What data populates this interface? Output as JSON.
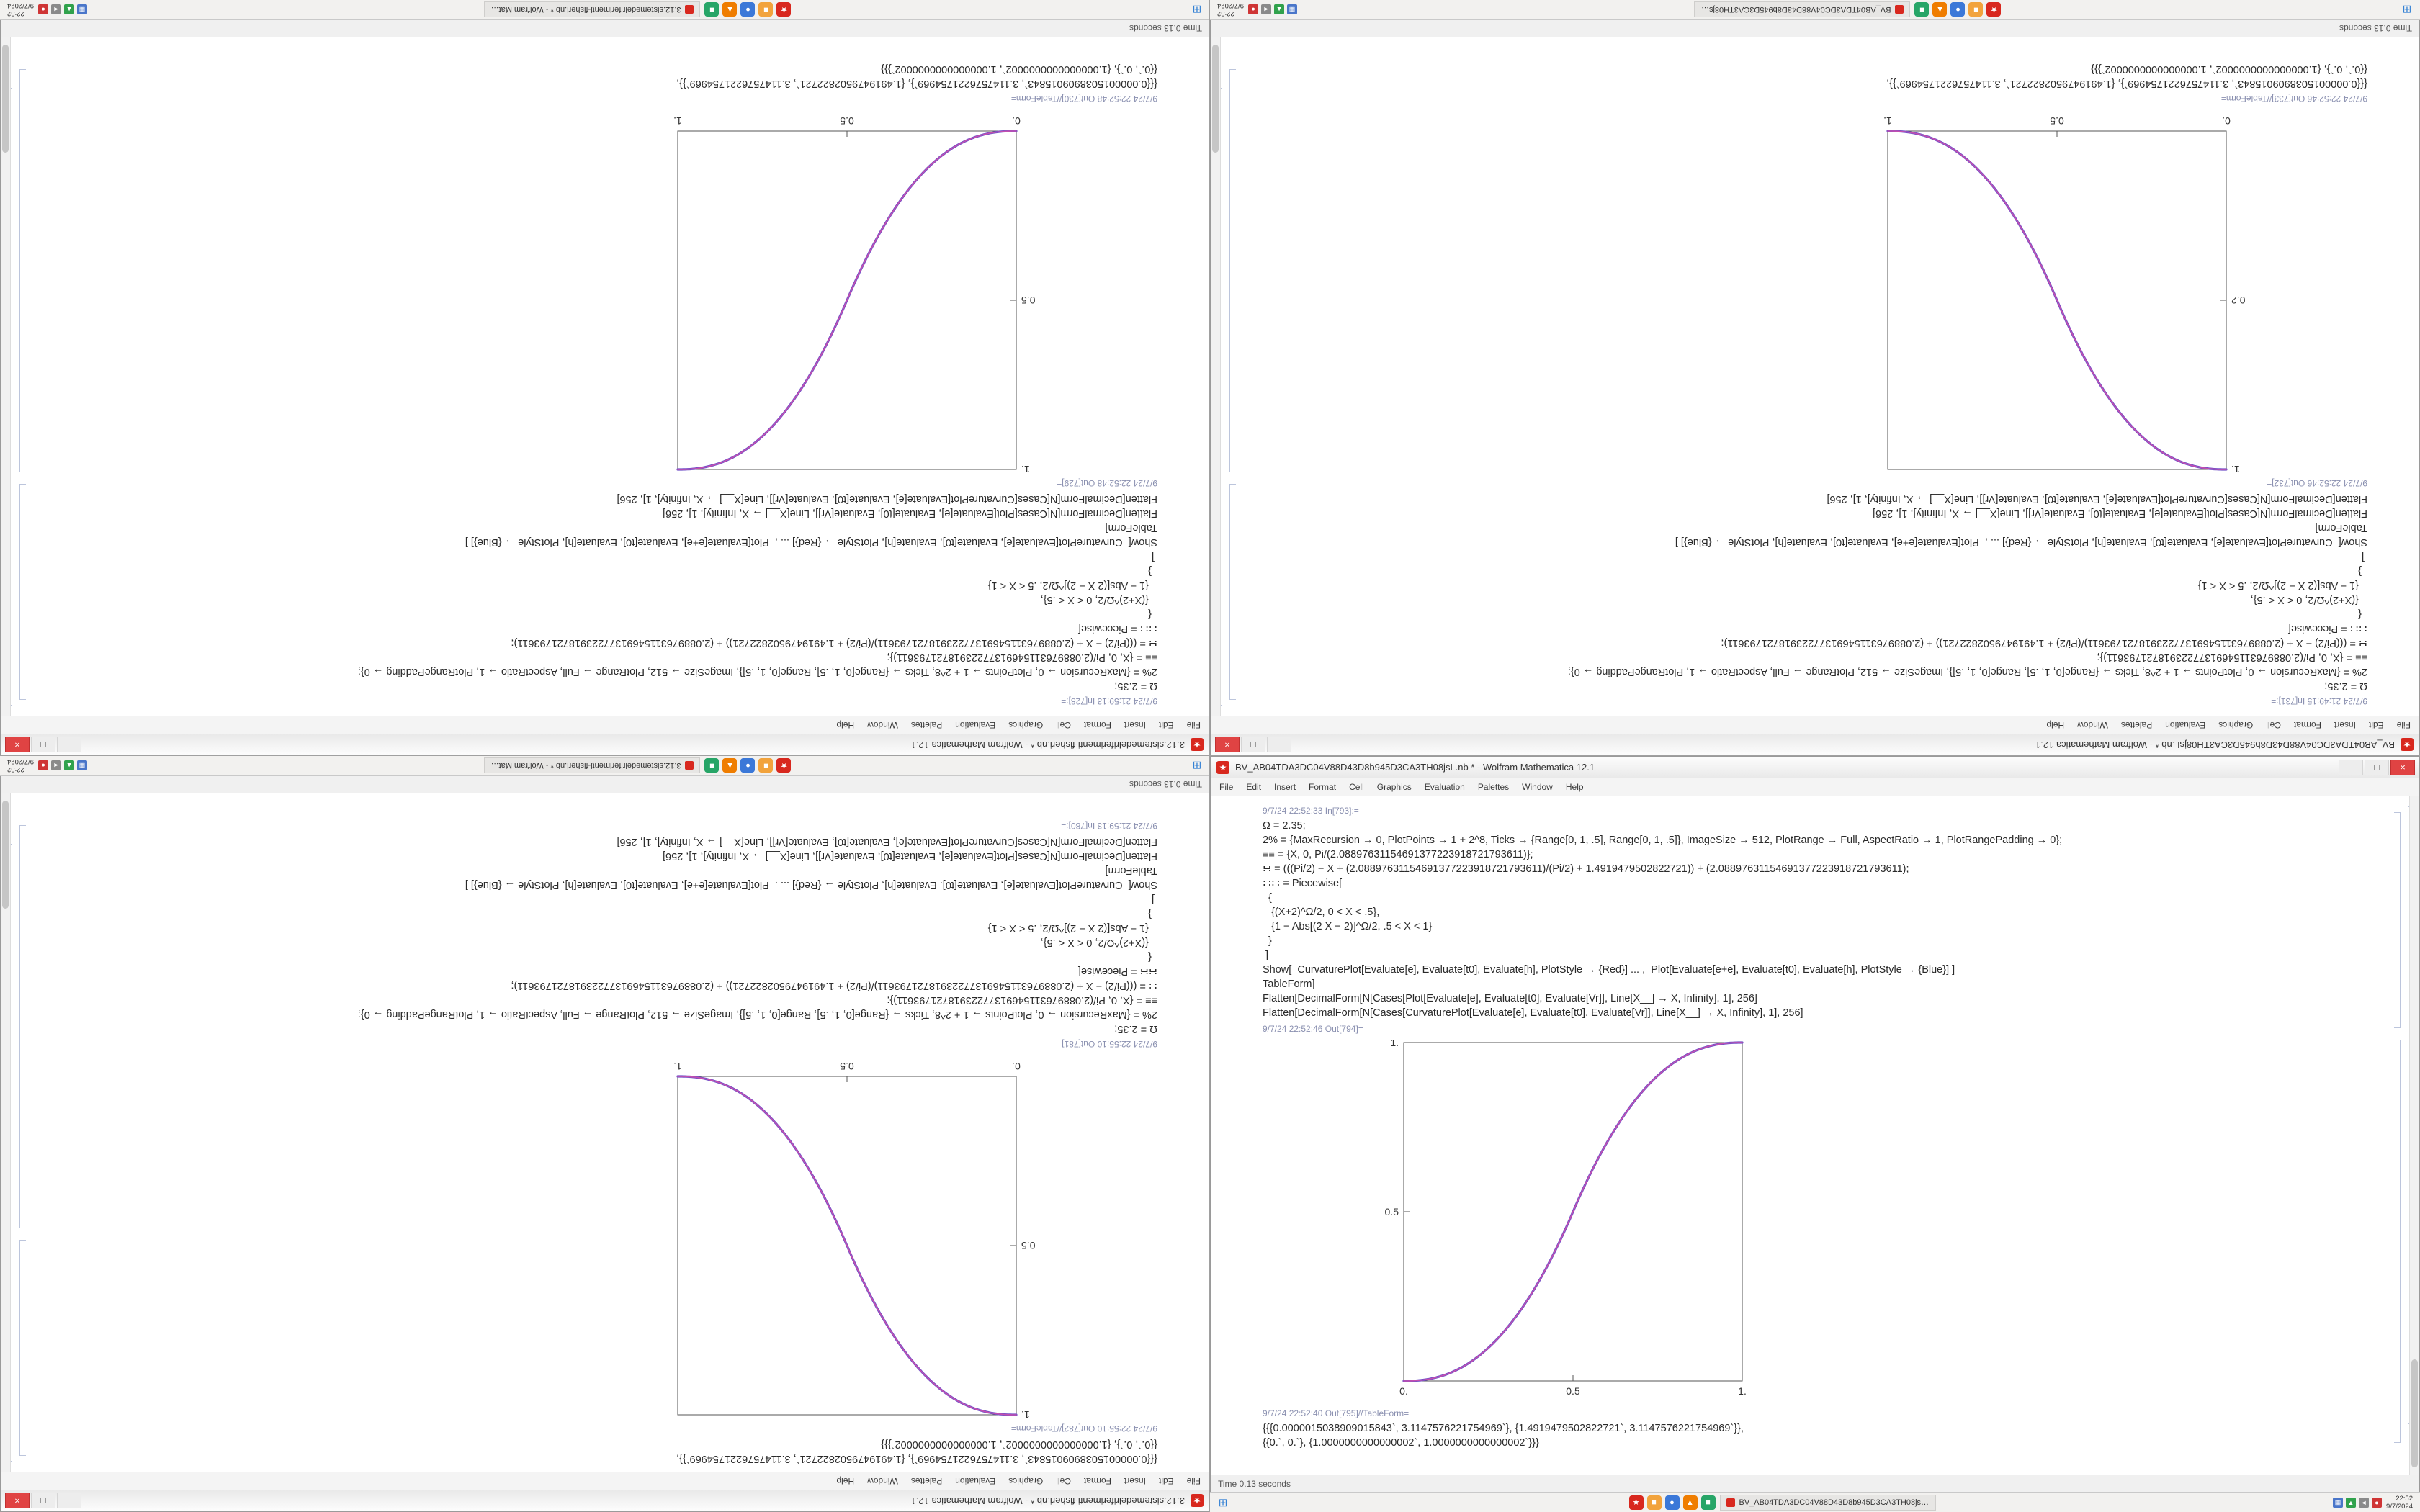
{
  "desktop": {
    "app_icon_glyph": "★",
    "menu_items": [
      "File",
      "Edit",
      "Insert",
      "Format",
      "Cell",
      "Graphics",
      "Evaluation",
      "Palettes",
      "Window",
      "Help"
    ],
    "window_buttons": {
      "minimize": "–",
      "maximize": "□",
      "close": "×"
    },
    "taskbar": {
      "start_icon": "⊞",
      "pinned": [
        {
          "name": "mathematica-icon",
          "color": "#d8281e",
          "glyph": "★"
        },
        {
          "name": "files-icon",
          "color": "#f2a33c",
          "glyph": "■"
        },
        {
          "name": "browser-icon",
          "color": "#3b78d8",
          "glyph": "●"
        },
        {
          "name": "media-player-icon",
          "color": "#ef7d00",
          "glyph": "▲"
        },
        {
          "name": "messaging-icon",
          "color": "#27a567",
          "glyph": "■"
        }
      ],
      "tray": [
        {
          "name": "network-tray-icon",
          "color": "#4a76c9",
          "glyph": "▦"
        },
        {
          "name": "shield-tray-icon",
          "color": "#31a24c",
          "glyph": "▲"
        },
        {
          "name": "volume-tray-icon",
          "color": "#8a8a8a",
          "glyph": "◄"
        },
        {
          "name": "notifier-tray-icon",
          "color": "#cf3535",
          "glyph": "●"
        }
      ],
      "clock_time": "22:52",
      "clock_date": "9/7/2024"
    }
  },
  "shared": {
    "curve_colors": [
      "#c44faf",
      "#7050c8"
    ],
    "frame_color": "#555555",
    "in_lines": [
      "Ω = 2.35;",
      "2% = {MaxRecursion → 0, PlotPoints → 1 + 2^8, Ticks → {Range[0, 1, .5], Range[0, 1, .5]}, ImageSize → 512, PlotRange → Full, AspectRatio → 1, PlotRangePadding → 0};",
      "≡≡ = {X, 0, Pi/(2.08897631154691377223918721793611)};",
      "∺ = (((Pi/2) − X + (2.08897631154691377223918721793611)/(Pi/2) + 1.4919479502822721)) + (2.08897631154691377223918721793611);",
      "∺∺ = Piecewise[",
      "  {",
      "   {(X+2)^Ω/2, 0 < X < .5},",
      "   {1 − Abs[(2 X − 2)]^Ω/2, .5 < X < 1}",
      "  }",
      " ]",
      "Show[  CurvaturePlot[Evaluate[e], Evaluate[t0], Evaluate[h], PlotStyle → {Red}] ... ,  Plot[Evaluate[e+e], Evaluate[t0], Evaluate[h], PlotStyle → {Blue}] ]",
      "TableForm]",
      "Flatten[DecimalForm[N[Cases[Plot[Evaluate[e], Evaluate[t0], Evaluate[Vr]], Line[X__] → X, Infinity], 1], 256]",
      "Flatten[DecimalForm[N[Cases[CurvaturePlot[Evaluate[e], Evaluate[t0], Evaluate[Vr]], Line[X__] → X, Infinity], 1], 256]"
    ],
    "out_values": [
      "{{{0.0000015038909015843`, 3.1147576221754969`}, {1.4919479502822721`, 3.1147576221754969`}},",
      "{{0.`, 0.`}, {1.0000000000000002`, 1.0000000000000002`}}}"
    ]
  },
  "monitors": {
    "tl": {
      "rotated": true,
      "title": "3.12.sistemedelriferimenti-fisheri.nb * - Wolfram Mathematica 12.1",
      "status_left": "Time 0.13 seconds",
      "blocks": [
        {
          "type": "label",
          "text": "9/7/24 21:59:13 In[728]:="
        },
        {
          "type": "code",
          "ref": "in_lines"
        },
        {
          "type": "label",
          "text": "9/7/24 22:52:48 Out[729]="
        },
        {
          "type": "plot",
          "dir": "up",
          "omega": 2.35,
          "xticks": [
            "0.",
            "0.5",
            "1."
          ],
          "yticks": [
            "0.5",
            "1."
          ]
        },
        {
          "type": "label",
          "text": "9/7/24 22:52:48 Out[730]//TableForm="
        },
        {
          "type": "code",
          "ref": "out_values"
        }
      ]
    },
    "tr": {
      "rotated": true,
      "title": "BV_AB04TDA3DC04V88D43D8b945D3CA3TH08jsL.nb * - Wolfram Mathematica 12.1",
      "status_left": "Time 0.13 seconds",
      "blocks": [
        {
          "type": "label",
          "text": "9/7/24 21:49:15 In[731]:="
        },
        {
          "type": "code",
          "ref": "in_lines"
        },
        {
          "type": "label",
          "text": "9/7/24 22:52:46 Out[732]="
        },
        {
          "type": "plot",
          "dir": "down",
          "omega": 2.35,
          "xticks": [
            "0.",
            "0.5",
            "1."
          ],
          "yticks": [
            "0.2",
            "1."
          ]
        },
        {
          "type": "label",
          "text": "9/7/24 22:52:46 Out[733]//TableForm="
        },
        {
          "type": "code",
          "ref": "out_values"
        }
      ]
    },
    "bl": {
      "rotated": true,
      "title": "3.12.sistemedelriferimenti-fisheri.nb * - Wolfram Mathematica 12.1",
      "status_left": "Time 0.13 seconds",
      "blocks": [
        {
          "type": "code",
          "ref": "out_values"
        },
        {
          "type": "label",
          "text": "9/7/24 22:55:10 Out[782]//TableForm="
        },
        {
          "type": "plot",
          "dir": "down",
          "omega": 2.35,
          "xticks": [
            "0.",
            "0.5",
            "1."
          ],
          "yticks": [
            "0.5",
            "1."
          ]
        },
        {
          "type": "label",
          "text": "9/7/24 22:55:10 Out[781]="
        },
        {
          "type": "code",
          "ref": "in_lines"
        },
        {
          "type": "label",
          "text": "9/7/24 21:59:13 In[780]:="
        }
      ]
    },
    "br": {
      "rotated": false,
      "title": "BV_AB04TDA3DC04V88D43D8b945D3CA3TH08jsL.nb * - Wolfram Mathematica 12.1",
      "status_left": "Time 0.13 seconds",
      "blocks": [
        {
          "type": "label",
          "text": "9/7/24 22:52:33 In[793]:="
        },
        {
          "type": "code",
          "ref": "in_lines"
        },
        {
          "type": "label",
          "text": "9/7/24 22:52:46 Out[794]="
        },
        {
          "type": "plot",
          "dir": "up",
          "omega": 2.35,
          "xticks": [
            "0.",
            "0.5",
            "1."
          ],
          "yticks": [
            "0.5",
            "1."
          ]
        },
        {
          "type": "label",
          "text": "9/7/24 22:52:40 Out[795]//TableForm="
        },
        {
          "type": "code",
          "ref": "out_values"
        }
      ]
    }
  }
}
